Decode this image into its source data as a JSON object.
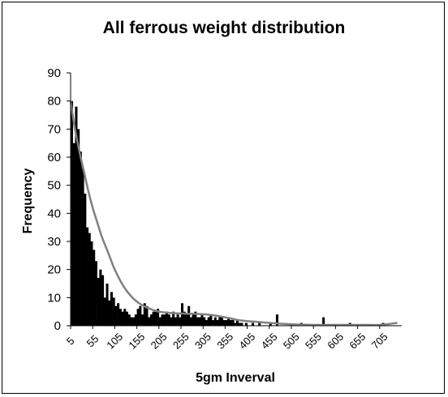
{
  "chart_data": {
    "type": "bar",
    "title": "All ferrous weight distribution",
    "xlabel": "5gm Inverval",
    "ylabel": "Frequency",
    "ylim": [
      0,
      90
    ],
    "yticks": [
      "0",
      "10",
      "20",
      "30",
      "40",
      "50",
      "60",
      "70",
      "80",
      "90"
    ],
    "xticks": [
      "5",
      "55",
      "105",
      "155",
      "205",
      "255",
      "305",
      "355",
      "405",
      "455",
      "505",
      "555",
      "605",
      "655",
      "705"
    ],
    "x_start": 5,
    "bin_width": 5,
    "legend": "none",
    "grid": false,
    "colors": {
      "bars": "#000000",
      "trend": "#808080"
    },
    "values": [
      80,
      65,
      78,
      70,
      62,
      56,
      47,
      35,
      33,
      30,
      27,
      23,
      17,
      20,
      18,
      10,
      15,
      9,
      12,
      10,
      7,
      8,
      6,
      5,
      6,
      5,
      4,
      3,
      3,
      4,
      6,
      7,
      4,
      8,
      7,
      3,
      4,
      5,
      5,
      6,
      3,
      4,
      4,
      5,
      4,
      3,
      5,
      3,
      4,
      3,
      8,
      5,
      4,
      7,
      3,
      4,
      5,
      3,
      3,
      4,
      3,
      2,
      3,
      4,
      2,
      3,
      2,
      3,
      3,
      2,
      2,
      3,
      2,
      2,
      1,
      2,
      1,
      1,
      0,
      1,
      0,
      0,
      1,
      0,
      0,
      1,
      0,
      0,
      0,
      0,
      1,
      0,
      0,
      4,
      0,
      0,
      0,
      0,
      0,
      0,
      0,
      0,
      0,
      0,
      1,
      0,
      0,
      0,
      0,
      0,
      0,
      0,
      0,
      0,
      3,
      0,
      0,
      0,
      0,
      0,
      0,
      0,
      0,
      0,
      0,
      0,
      1,
      0,
      0,
      0,
      0,
      0,
      0,
      0,
      0,
      0,
      0,
      0,
      0,
      0,
      0,
      1,
      0,
      0,
      0,
      0,
      0,
      0,
      0,
      0
    ],
    "trendline": {
      "type": "smoothed",
      "x": [
        5,
        15,
        25,
        35,
        45,
        55,
        65,
        75,
        85,
        95,
        105,
        125,
        145,
        165,
        185,
        205,
        235,
        265,
        295,
        325,
        355,
        385,
        415,
        455,
        505,
        555,
        605,
        655,
        705,
        745
      ],
      "y": [
        80,
        70,
        62,
        55,
        48,
        42,
        37,
        32,
        28,
        24,
        20,
        14,
        10,
        7.5,
        6,
        5,
        4.5,
        4.3,
        4.2,
        3.8,
        3,
        2,
        1.5,
        1,
        0.5,
        0.3,
        0.3,
        0.3,
        0.3,
        1
      ]
    }
  }
}
